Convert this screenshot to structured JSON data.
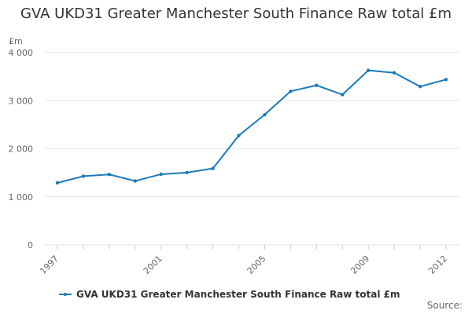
{
  "title": "GVA UKD31 Greater Manchester South Finance Raw total £m",
  "credit": "Source:",
  "chart_data": {
    "type": "line",
    "title": "GVA UKD31 Greater Manchester South Finance Raw total £m",
    "ylabel": "£m",
    "xlabel": "",
    "x": [
      1997,
      1998,
      1999,
      2000,
      2001,
      2002,
      2003,
      2004,
      2005,
      2006,
      2007,
      2008,
      2009,
      2010,
      2011,
      2012
    ],
    "x_tick_labels": [
      "1997",
      "2001",
      "2005",
      "2009",
      "2012"
    ],
    "x_ticks": [
      1997,
      2001,
      2005,
      2009,
      2012
    ],
    "y_ticks": [
      0,
      1000,
      2000,
      3000,
      4000
    ],
    "y_tick_labels": [
      "0",
      "1 000",
      "2 000",
      "3 000",
      "4 000"
    ],
    "ylim": [
      0,
      4000
    ],
    "xlim": [
      1997,
      2012
    ],
    "grid": true,
    "legend_position": "bottom",
    "series": [
      {
        "name": "GVA UKD31 Greater Manchester South Finance Raw total £m",
        "color": "#1a7ab8",
        "values": [
          1290,
          1430,
          1465,
          1330,
          1470,
          1505,
          1590,
          2275,
          2710,
          3195,
          3320,
          3125,
          3630,
          3580,
          3295,
          3440
        ]
      }
    ]
  }
}
